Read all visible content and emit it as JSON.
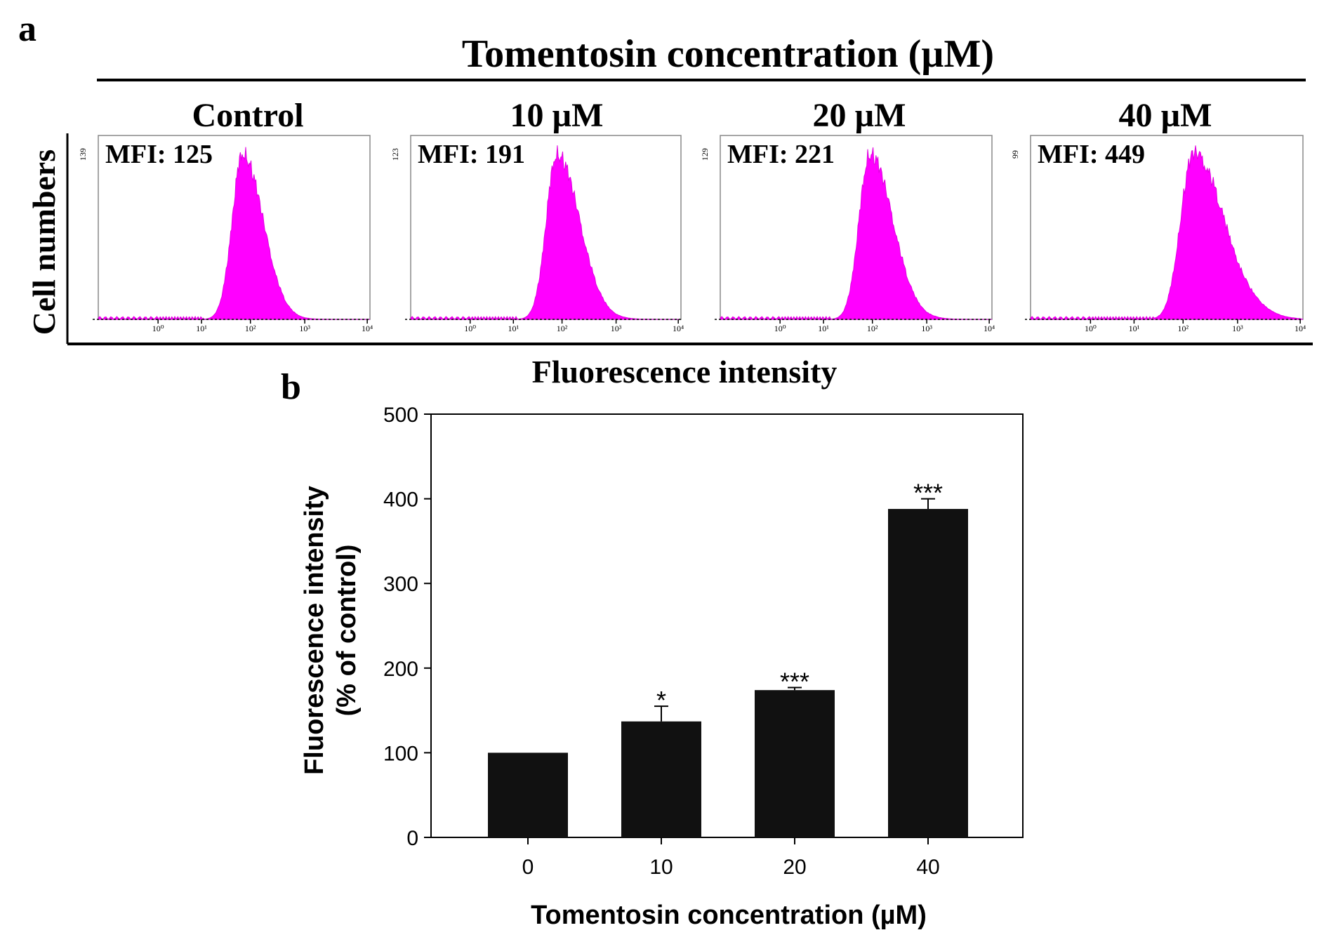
{
  "panel_a": {
    "label": "a",
    "header": "Tomentosin concentration (µM)",
    "y_label": "Cell numbers",
    "x_label": "Fluorescence intensity",
    "decade_ticks": [
      "10⁰",
      "10¹",
      "10²",
      "10³",
      "10⁴"
    ],
    "histogram_color": "#ff00ff",
    "histograms": [
      {
        "title": "Control",
        "mfi_text": "MFI: 125",
        "y_max_label": "139",
        "peak_log": 1.85,
        "sigma_left": 0.22,
        "sigma_right": 0.38
      },
      {
        "title": "10 µM",
        "mfi_text": "MFI: 191",
        "y_max_label": "123",
        "peak_log": 1.9,
        "sigma_left": 0.22,
        "sigma_right": 0.42
      },
      {
        "title": "20 µM",
        "mfi_text": "MFI: 221",
        "y_max_label": "129",
        "peak_log": 1.95,
        "sigma_left": 0.22,
        "sigma_right": 0.42
      },
      {
        "title": "40 µM",
        "mfi_text": "MFI: 449",
        "y_max_label": "99",
        "peak_log": 2.2,
        "sigma_left": 0.25,
        "sigma_right": 0.55
      }
    ]
  },
  "panel_b": {
    "label": "b"
  },
  "chart_data": {
    "type": "bar",
    "title": "",
    "categories": [
      "0",
      "10",
      "20",
      "40"
    ],
    "values": [
      100,
      137,
      174,
      388
    ],
    "errors": [
      0,
      18,
      3,
      12
    ],
    "significance": [
      "",
      "*",
      "***",
      "***"
    ],
    "xlabel": "Tomentosin concentration (µM)",
    "ylabel_line1": "Fluorescence intensity",
    "ylabel_line2": "(% of control)",
    "ylim": [
      0,
      500
    ],
    "yticks": [
      "0",
      "100",
      "200",
      "300",
      "400",
      "500"
    ],
    "bar_color": "#111111"
  }
}
